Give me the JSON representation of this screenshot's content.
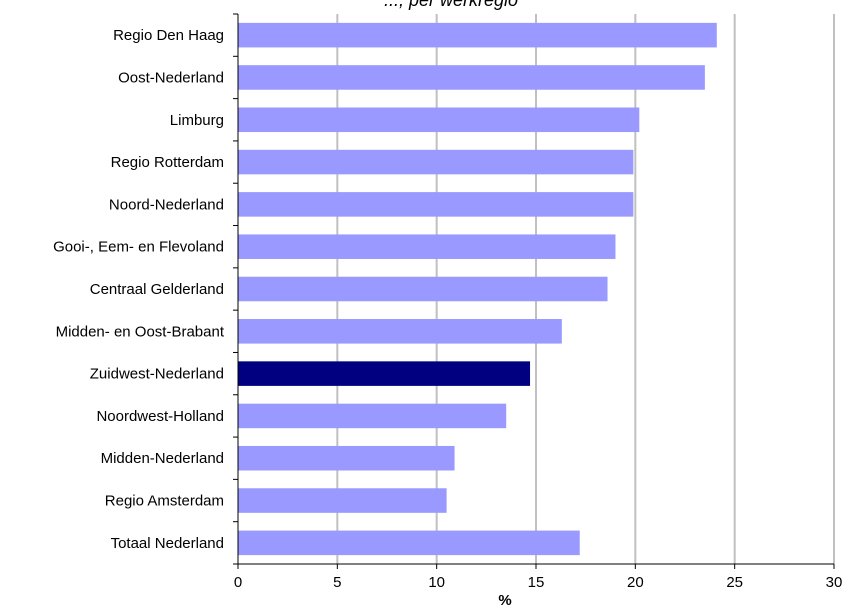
{
  "chart_data": {
    "type": "bar",
    "orientation": "horizontal",
    "title": "..., per werkregio",
    "xlabel": "%",
    "ylabel": "",
    "xlim": [
      0,
      30
    ],
    "xticks": [
      0,
      5,
      10,
      15,
      20,
      25,
      30
    ],
    "grid": "vertical",
    "categories": [
      "Regio Den Haag",
      "Oost-Nederland",
      "Limburg",
      "Regio Rotterdam",
      "Noord-Nederland",
      "Gooi-, Eem- en Flevoland",
      "Centraal Gelderland",
      "Midden- en Oost-Brabant",
      "Zuidwest-Nederland",
      "Noordwest-Holland",
      "Midden-Nederland",
      "Regio Amsterdam",
      "Totaal Nederland"
    ],
    "values": [
      24.1,
      23.5,
      20.2,
      19.9,
      19.9,
      19.0,
      18.6,
      16.3,
      14.7,
      13.5,
      10.9,
      10.5,
      17.2
    ],
    "highlight": "Zuidwest-Nederland",
    "colors": {
      "bar": "#9999ff",
      "highlight": "#000080",
      "grid": "#c0c0c0",
      "axis": "#000000"
    }
  }
}
